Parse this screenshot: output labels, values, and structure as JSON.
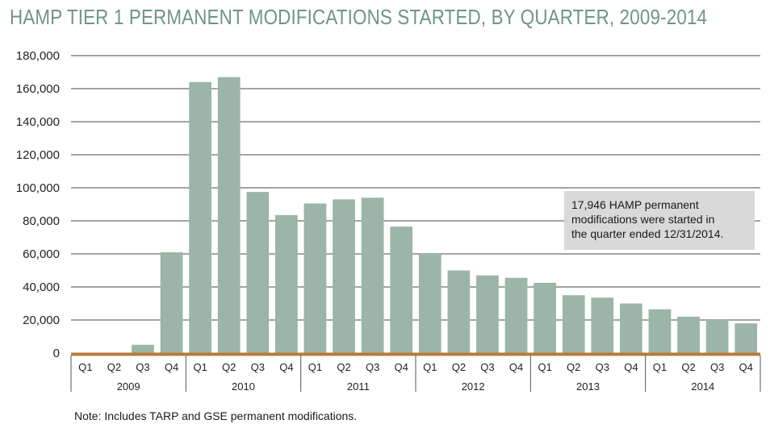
{
  "title": "HAMP TIER 1 PERMANENT MODIFICATIONS STARTED, BY QUARTER, 2009-2014",
  "note": "Note: Includes TARP and GSE permanent modifications.",
  "annotation": {
    "lines": [
      "17,946 HAMP permanent",
      "modifications were started in",
      "the quarter ended 12/31/2014."
    ]
  },
  "colors": {
    "bar": "#9cb5a9",
    "axis": "#b87a3c",
    "title": "#6f9488",
    "grid": "#4a4a4a"
  },
  "chart_data": {
    "type": "bar",
    "title": "HAMP TIER 1 PERMANENT MODIFICATIONS STARTED, BY QUARTER, 2009-2014",
    "xlabel": "",
    "ylabel": "",
    "ylim": [
      0,
      180000
    ],
    "yticks": [
      0,
      20000,
      40000,
      60000,
      80000,
      100000,
      120000,
      140000,
      160000,
      180000
    ],
    "ytick_labels": [
      "0",
      "20,000",
      "40,000",
      "60,000",
      "80,000",
      "100,000",
      "120,000",
      "140,000",
      "160,000",
      "180,000"
    ],
    "grid": true,
    "years": [
      "2009",
      "2010",
      "2011",
      "2012",
      "2013",
      "2014"
    ],
    "quarters": [
      "Q1",
      "Q2",
      "Q3",
      "Q4"
    ],
    "categories": [
      "2009 Q1",
      "2009 Q2",
      "2009 Q3",
      "2009 Q4",
      "2010 Q1",
      "2010 Q2",
      "2010 Q3",
      "2010 Q4",
      "2011 Q1",
      "2011 Q2",
      "2011 Q3",
      "2011 Q4",
      "2012 Q1",
      "2012 Q2",
      "2012 Q3",
      "2012 Q4",
      "2013 Q1",
      "2013 Q2",
      "2013 Q3",
      "2013 Q4",
      "2014 Q1",
      "2014 Q2",
      "2014 Q3",
      "2014 Q4"
    ],
    "values": [
      0,
      0,
      5000,
      61000,
      164000,
      167000,
      97500,
      83500,
      90500,
      93000,
      94000,
      76500,
      60500,
      50000,
      47000,
      45500,
      42500,
      35000,
      33500,
      30000,
      26500,
      22000,
      20000,
      17946
    ]
  }
}
